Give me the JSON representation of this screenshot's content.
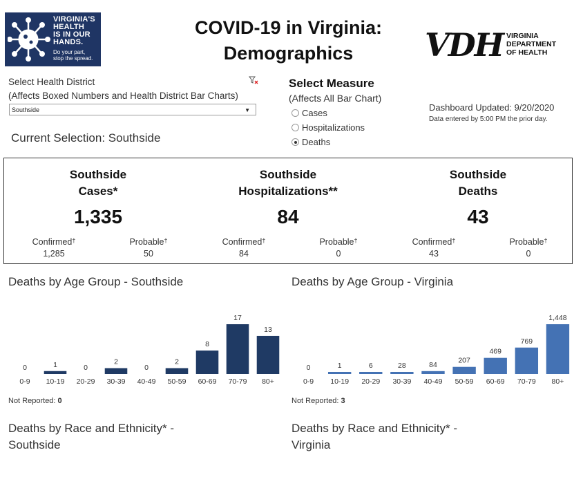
{
  "logo": {
    "text_lines": [
      "VIRGINIA'S",
      "HEALTH",
      "IS IN OUR",
      "HANDS."
    ],
    "tagline_lines": [
      "Do your part,",
      "stop the spread."
    ],
    "bg_color": "#1f3564"
  },
  "title_lines": [
    "COVID-19 in Virginia:",
    "Demographics"
  ],
  "vdh": {
    "letters": "VDH",
    "sub_lines": [
      "VIRGINIA",
      "DEPARTMENT",
      "OF HEALTH"
    ]
  },
  "district_filter": {
    "label_line1": "Select Health District",
    "label_line2": "(Affects Boxed Numbers and Health District Bar Charts)",
    "selected": "Southside",
    "clear_icon": "clear-filter-icon"
  },
  "current_selection": "Current Selection: Southside",
  "measure": {
    "title": "Select Measure",
    "subtitle": "(Affects All Bar Chart)",
    "options": [
      {
        "label": "Cases",
        "selected": false
      },
      {
        "label": "Hospitalizations",
        "selected": false
      },
      {
        "label": "Deaths",
        "selected": true
      }
    ]
  },
  "updated": {
    "label": "Dashboard Updated: 9/20/2020",
    "note": "Data entered by 5:00 PM the prior day."
  },
  "summary": {
    "dagger": "†",
    "metrics": [
      {
        "title1": "Southside",
        "title2": "Cases*",
        "value": "1,335",
        "confirmed_label": "Confirmed",
        "confirmed": "1,285",
        "probable_label": "Probable",
        "probable": "50"
      },
      {
        "title1": "Southside",
        "title2": "Hospitalizations**",
        "value": "84",
        "confirmed_label": "Confirmed",
        "confirmed": "84",
        "probable_label": "Probable",
        "probable": "0"
      },
      {
        "title1": "Southside",
        "title2": "Deaths",
        "value": "43",
        "confirmed_label": "Confirmed",
        "confirmed": "43",
        "probable_label": "Probable",
        "probable": "0"
      }
    ]
  },
  "charts": {
    "southside": {
      "title": "Deaths by Age Group - Southside",
      "not_reported_label": "Not Reported:",
      "not_reported_value": "0"
    },
    "virginia": {
      "title": "Deaths by Age Group - Virginia",
      "not_reported_label": "Not Reported:",
      "not_reported_value": "3"
    }
  },
  "race": {
    "southside_line1": "Deaths by Race and Ethnicity* -",
    "southside_line2": "Southside",
    "virginia_line1": "Deaths by Race and Ethnicity* -",
    "virginia_line2": "Virginia"
  },
  "chart_data": [
    {
      "type": "bar",
      "title": "Deaths by Age Group - Southside",
      "categories": [
        "0-9",
        "10-19",
        "20-29",
        "30-39",
        "40-49",
        "50-59",
        "60-69",
        "70-79",
        "80+"
      ],
      "values": [
        0,
        1,
        0,
        2,
        0,
        2,
        8,
        17,
        13
      ],
      "labels": [
        "0",
        "1",
        "0",
        "2",
        "0",
        "2",
        "8",
        "17",
        "13"
      ],
      "color": "#1f3a64",
      "ylim": [
        0,
        17
      ]
    },
    {
      "type": "bar",
      "title": "Deaths by Age Group - Virginia",
      "categories": [
        "0-9",
        "10-19",
        "20-29",
        "30-39",
        "40-49",
        "50-59",
        "60-69",
        "70-79",
        "80+"
      ],
      "values": [
        0,
        1,
        6,
        28,
        84,
        207,
        469,
        769,
        1448
      ],
      "labels": [
        "0",
        "1",
        "6",
        "28",
        "84",
        "207",
        "469",
        "769",
        "1,448"
      ],
      "color": "#4472b4",
      "ylim": [
        0,
        1448
      ]
    }
  ]
}
